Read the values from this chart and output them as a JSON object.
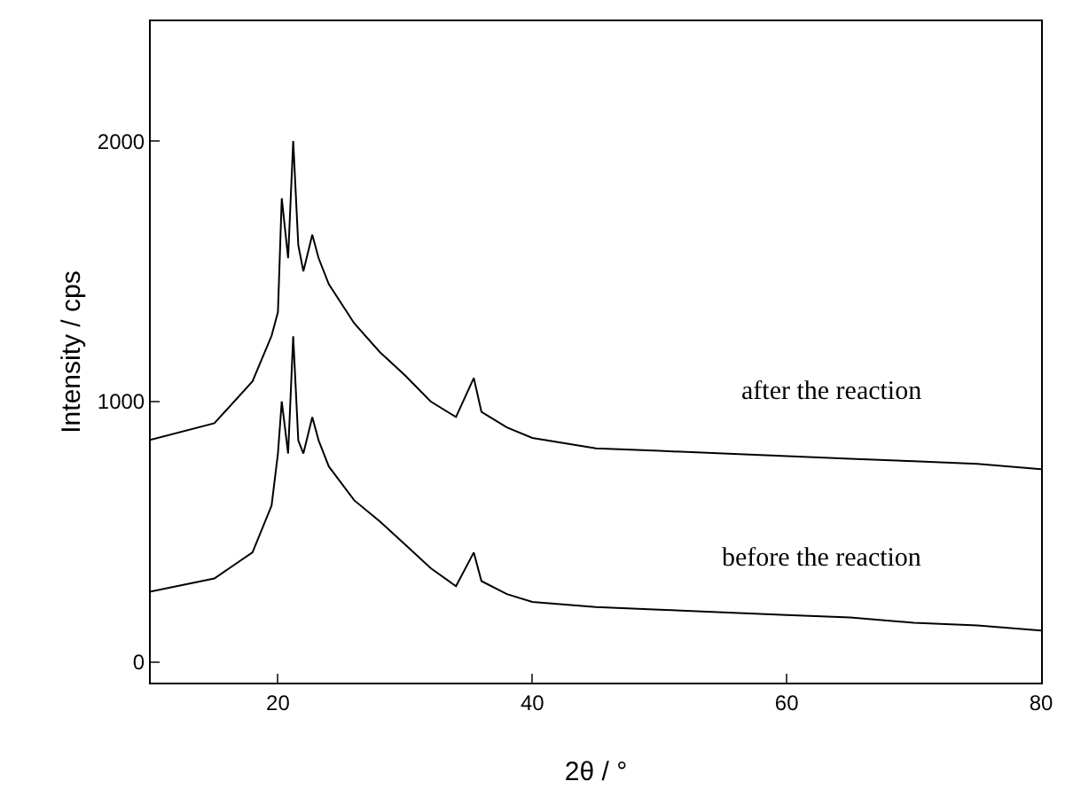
{
  "chart_data": {
    "type": "line",
    "xlabel": "2θ / °",
    "ylabel": "Intensity / cps",
    "xlim": [
      10,
      80
    ],
    "ylim": [
      -80,
      2460
    ],
    "xticks": [
      20,
      40,
      60,
      80
    ],
    "yticks": [
      0,
      1000,
      2000
    ],
    "grid": false,
    "legend": false,
    "marker": "none",
    "line_style": "solid",
    "x": [
      10,
      15,
      18,
      19.5,
      20,
      20.3,
      20.8,
      21.2,
      21.6,
      22,
      22.7,
      23.2,
      24,
      26,
      28,
      30,
      32,
      34,
      35.4,
      36,
      38,
      40,
      45,
      50,
      55,
      60,
      65,
      70,
      75,
      80
    ],
    "series": [
      {
        "name": "after the reaction",
        "color": "#000000",
        "values": [
          853,
          916,
          1077,
          1252,
          1343,
          1780,
          1550,
          2000,
          1600,
          1500,
          1640,
          1550,
          1450,
          1300,
          1190,
          1100,
          1000,
          940,
          1090,
          960,
          900,
          860,
          820,
          810,
          800,
          790,
          780,
          770,
          760,
          740
        ]
      },
      {
        "name": "before the reaction",
        "color": "#000000",
        "values": [
          270,
          320,
          420,
          600,
          800,
          1000,
          800,
          1250,
          850,
          800,
          940,
          850,
          750,
          620,
          540,
          450,
          360,
          290,
          420,
          310,
          260,
          230,
          210,
          200,
          190,
          180,
          170,
          150,
          140,
          120
        ]
      }
    ]
  }
}
